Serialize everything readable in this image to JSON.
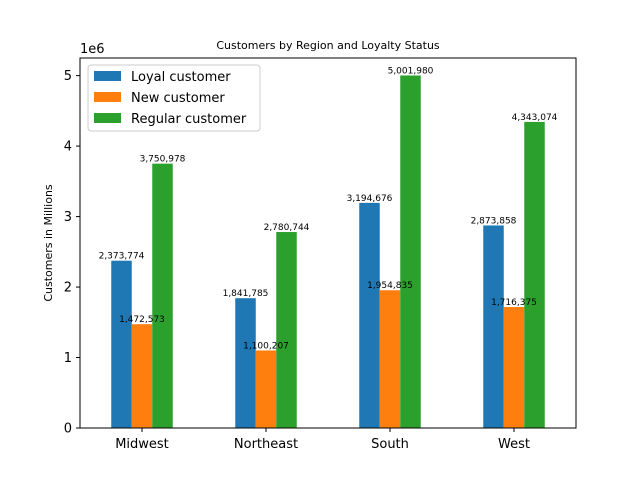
{
  "chart_data": {
    "type": "bar",
    "title": "Customers by Region and Loyalty Status",
    "xlabel": "",
    "ylabel": "Customers in Millions",
    "y_offset_text": "1e6",
    "categories": [
      "Midwest",
      "Northeast",
      "South",
      "West"
    ],
    "series": [
      {
        "name": "Loyal customer",
        "color": "#1f77b4",
        "values": [
          2373774,
          1841785,
          3194676,
          2873858
        ],
        "labels": [
          "2,373,774",
          "1,841,785",
          "3,194,676",
          "2,873,858"
        ]
      },
      {
        "name": "New customer",
        "color": "#ff7f0e",
        "values": [
          1472573,
          1100207,
          1954835,
          1716375
        ],
        "labels": [
          "1,472,573",
          "1,100,207",
          "1,954,835",
          "1,716,375"
        ]
      },
      {
        "name": "Regular customer",
        "color": "#2ca02c",
        "values": [
          3750978,
          2780744,
          5001980,
          4343074
        ],
        "labels": [
          "3,750,978",
          "2,780,744",
          "5,001,980",
          "4,343,074"
        ]
      }
    ],
    "ylim": [
      0,
      5250000
    ],
    "yticks": [
      0,
      1000000,
      2000000,
      3000000,
      4000000,
      5000000
    ],
    "ytick_labels": [
      "0",
      "1",
      "2",
      "3",
      "4",
      "5"
    ],
    "grid": false,
    "legend_position": "top-left"
  }
}
